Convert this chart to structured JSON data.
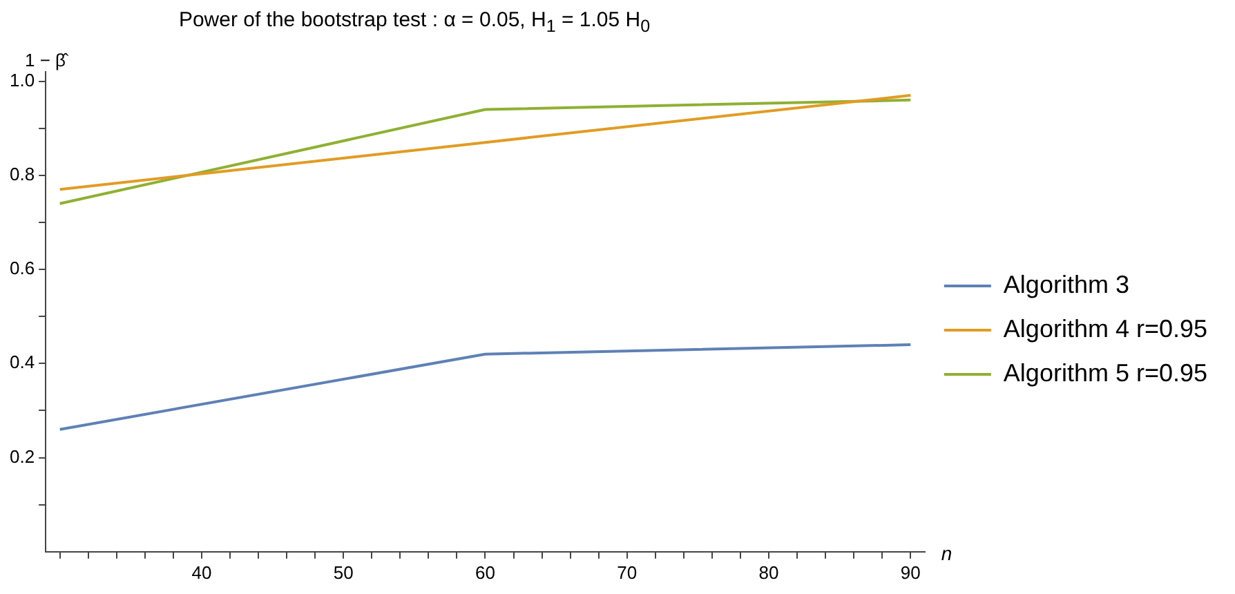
{
  "chart_data": {
    "type": "line",
    "title": "Power of the bootstrap test : α =  0.05, H$_{1}$ = 1.05 H$_{0}$",
    "xlabel": "n",
    "ylabel": "1 − β̂",
    "x": [
      30,
      60,
      90
    ],
    "series": [
      {
        "name": "Algorithm 3",
        "color": "#5e81b5",
        "values": [
          0.26,
          0.42,
          0.44
        ]
      },
      {
        "name": "Algorithm 4 r=0.95",
        "color": "#e19c24",
        "values": [
          0.77,
          0.87,
          0.97
        ]
      },
      {
        "name": "Algorithm 5 r=0.95",
        "color": "#8fb032",
        "values": [
          0.74,
          0.94,
          0.96
        ]
      }
    ],
    "xlim": [
      29,
      91
    ],
    "xticks": [
      {
        "value": 30,
        "label": null
      },
      {
        "value": 32,
        "label": null
      },
      {
        "value": 34,
        "label": null
      },
      {
        "value": 36,
        "label": null
      },
      {
        "value": 38,
        "label": null
      },
      40,
      {
        "value": 42,
        "label": null
      },
      {
        "value": 44,
        "label": null
      },
      {
        "value": 46,
        "label": null
      },
      {
        "value": 48,
        "label": null
      },
      50,
      {
        "value": 52,
        "label": null
      },
      {
        "value": 54,
        "label": null
      },
      {
        "value": 56,
        "label": null
      },
      {
        "value": 58,
        "label": null
      },
      60,
      {
        "value": 62,
        "label": null
      },
      {
        "value": 64,
        "label": null
      },
      {
        "value": 66,
        "label": null
      },
      {
        "value": 68,
        "label": null
      },
      70,
      {
        "value": 72,
        "label": null
      },
      {
        "value": 74,
        "label": null
      },
      {
        "value": 76,
        "label": null
      },
      {
        "value": 78,
        "label": null
      },
      80,
      {
        "value": 82,
        "label": null
      },
      {
        "value": 84,
        "label": null
      },
      {
        "value": 86,
        "label": null
      },
      {
        "value": 88,
        "label": null
      },
      90
    ],
    "ylim": [
      0,
      1.02
    ],
    "yticks": [
      {
        "value": 0.1,
        "label": null
      },
      {
        "value": 0.2,
        "label": "0.2"
      },
      {
        "value": 0.3,
        "label": null
      },
      {
        "value": 0.4,
        "label": "0.4"
      },
      {
        "value": 0.5,
        "label": null
      },
      {
        "value": 0.6,
        "label": "0.6"
      },
      {
        "value": 0.7,
        "label": null
      },
      {
        "value": 0.8,
        "label": "0.8"
      },
      {
        "value": 0.9,
        "label": null
      },
      {
        "value": 1.0,
        "label": "1.0"
      }
    ],
    "grid": false,
    "legend": "right",
    "marker": "none",
    "line_style": "solid"
  }
}
